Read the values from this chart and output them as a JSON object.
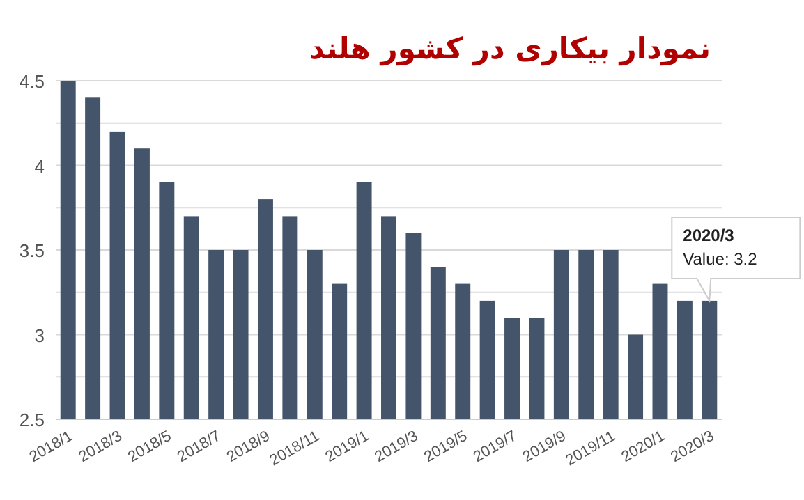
{
  "chart_data": {
    "type": "bar",
    "title": "نمودار بیکاری در کشور هلند",
    "categories": [
      "2018/1",
      null,
      "2018/3",
      null,
      "2018/5",
      null,
      "2018/7",
      null,
      "2018/9",
      null,
      "2018/11",
      null,
      "2019/1",
      null,
      "2019/3",
      null,
      "2019/5",
      null,
      "2019/7",
      null,
      "2019/9",
      null,
      "2019/11",
      null,
      "2020/1",
      null,
      "2020/3"
    ],
    "series": [
      {
        "color": "#44546a",
        "values": [
          4.5,
          4.4,
          4.2,
          4.1,
          3.9,
          3.7,
          3.5,
          3.5,
          3.8,
          3.7,
          3.5,
          3.3,
          3.9,
          3.7,
          3.6,
          3.4,
          3.3,
          3.2,
          3.1,
          3.1,
          3.5,
          3.5,
          3.5,
          3.0,
          3.3,
          3.2,
          3.2
        ]
      }
    ],
    "ylim": [
      2.5,
      4.5
    ],
    "yticks": [
      2.5,
      {
        "value": 2.75,
        "label": null
      },
      3,
      {
        "value": 3.25,
        "label": null
      },
      3.5,
      {
        "value": 3.75,
        "label": null
      },
      4,
      {
        "value": 4.25,
        "label": null
      },
      4.5
    ],
    "grid": "y",
    "annotations": [
      {
        "text": "2020/3\nValue: 3.2",
        "x": "2020/3",
        "y": 3.2
      }
    ]
  }
}
